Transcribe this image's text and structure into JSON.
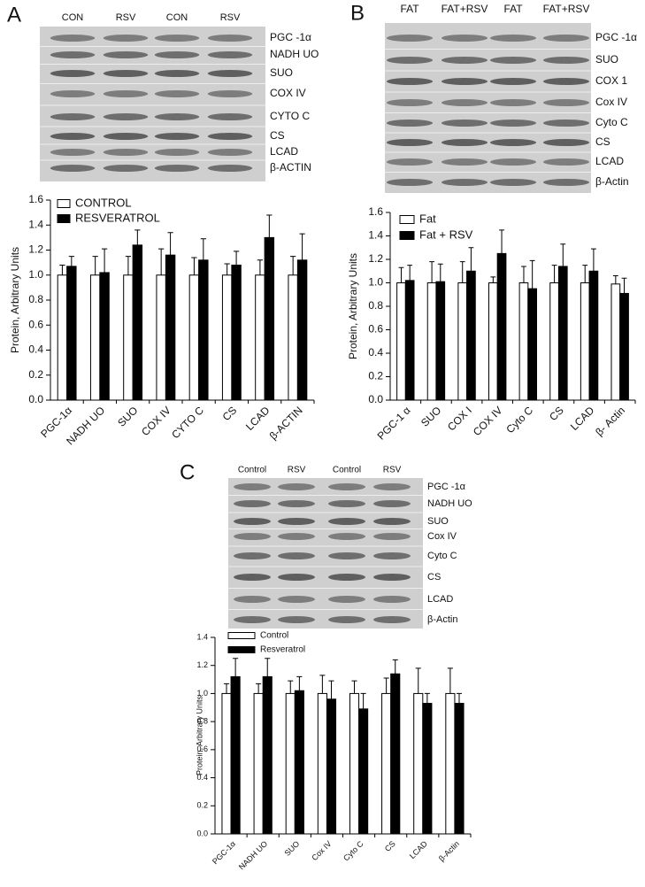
{
  "panels": [
    {
      "letter": "A",
      "lanes": [
        "CON",
        "RSV",
        "CON",
        "RSV"
      ],
      "proteins": [
        "PGC -1α",
        "NADH UO",
        "SUO",
        "COX IV",
        "CYTO C",
        "CS",
        "LCAD",
        "β-ACTIN"
      ]
    },
    {
      "letter": "B",
      "lanes": [
        "FAT",
        "FAT+RSV",
        "FAT",
        "FAT+RSV"
      ],
      "proteins": [
        "PGC -1α",
        "SUO",
        "COX 1",
        "Cox IV",
        "Cyto C",
        "CS",
        "LCAD",
        "β-Actin"
      ]
    },
    {
      "letter": "C",
      "lanes": [
        "Control",
        "RSV",
        "Control",
        "RSV"
      ],
      "proteins": [
        "PGC -1α",
        "NADH UO",
        "SUO",
        "Cox IV",
        "Cyto C",
        "CS",
        "LCAD",
        "β-Actin"
      ]
    }
  ],
  "chart_data": [
    {
      "type": "bar",
      "ylabel": "Protein, Arbitrary Units",
      "legend": "upper left",
      "categories": [
        "PGC-1α",
        "NADH UO",
        "SUO",
        "COX IV",
        "CYTO C",
        "CS",
        "LCAD",
        "β-ACTIN"
      ],
      "series": [
        {
          "name": "CONTROL",
          "color": "#ffffff",
          "values": [
            1.0,
            1.0,
            1.0,
            1.0,
            1.0,
            1.0,
            1.0,
            1.0
          ],
          "errors": [
            0.08,
            0.15,
            0.15,
            0.21,
            0.14,
            0.09,
            0.12,
            0.15
          ]
        },
        {
          "name": "RESVERATROL",
          "color": "#000000",
          "values": [
            1.07,
            1.02,
            1.24,
            1.16,
            1.12,
            1.08,
            1.3,
            1.12
          ],
          "errors": [
            0.08,
            0.19,
            0.12,
            0.18,
            0.17,
            0.11,
            0.18,
            0.21
          ]
        }
      ],
      "ylim": [
        0,
        1.6
      ],
      "yticks": [
        {
          "value": 0,
          "label": "0.0"
        },
        0.2,
        0.4,
        0.6,
        0.8,
        {
          "value": 1,
          "label": "1.0"
        },
        1.2,
        1.4,
        1.6
      ]
    },
    {
      "type": "bar",
      "ylabel": "Protein, Arbitrary Units",
      "legend": "upper left",
      "categories": [
        "PGC-1 α",
        "SUO",
        "COX I",
        "COX IV",
        "Cyto C",
        "CS",
        "LCAD",
        "β- Actin"
      ],
      "series": [
        {
          "name": "Fat",
          "color": "#ffffff",
          "values": [
            1.0,
            1.0,
            1.0,
            1.0,
            1.0,
            1.0,
            1.0,
            0.99
          ],
          "errors": [
            0.13,
            0.18,
            0.18,
            0.05,
            0.14,
            0.15,
            0.15,
            0.07
          ]
        },
        {
          "name": "Fat + RSV",
          "color": "#000000",
          "values": [
            1.02,
            1.01,
            1.1,
            1.25,
            0.95,
            1.14,
            1.1,
            0.91
          ],
          "errors": [
            0.13,
            0.15,
            0.2,
            0.2,
            0.24,
            0.19,
            0.19,
            0.13
          ]
        }
      ],
      "ylim": [
        0,
        1.6
      ],
      "yticks": [
        {
          "value": 0,
          "label": "0.0"
        },
        0.2,
        0.4,
        0.6,
        0.8,
        {
          "value": 1,
          "label": "1.0"
        },
        1.2,
        1.4,
        1.6
      ]
    },
    {
      "type": "bar",
      "ylabel": "Protein, Arbitrary Units",
      "legend": "upper left",
      "categories": [
        "PGC-1α",
        "NADH UO",
        "SUO",
        "Cox IV",
        "Cyto C",
        "CS",
        "LCAD",
        "β-Actin"
      ],
      "series": [
        {
          "name": "Control",
          "color": "#ffffff",
          "values": [
            1.0,
            1.0,
            1.0,
            1.0,
            1.0,
            1.0,
            1.0,
            1.0
          ],
          "errors": [
            0.07,
            0.07,
            0.09,
            0.13,
            0.09,
            0.11,
            0.18,
            0.18
          ]
        },
        {
          "name": "Resveratrol",
          "color": "#000000",
          "values": [
            1.12,
            1.12,
            1.02,
            0.96,
            0.89,
            1.14,
            0.93,
            0.93
          ],
          "errors": [
            0.13,
            0.13,
            0.1,
            0.13,
            0.11,
            0.1,
            0.07,
            0.07
          ]
        }
      ],
      "ylim": [
        0,
        1.4
      ],
      "yticks": [
        {
          "value": 0,
          "label": "0.0"
        },
        0.2,
        0.4,
        0.6,
        0.8,
        {
          "value": 1,
          "label": "1.0"
        },
        1.2,
        1.4
      ]
    }
  ]
}
